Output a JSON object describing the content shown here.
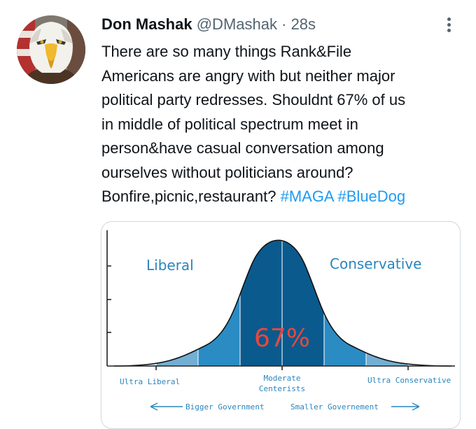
{
  "tweet": {
    "author_name": "Don Mashak",
    "author_handle": "@DMashak",
    "separator": "·",
    "timestamp": "28s",
    "text_lines": [
      "There are so many things Rank&File",
      "Americans are angry with but neither major",
      "political party redresses. Shouldnt 67% of us",
      "in middle of political spectrum meet in",
      "person&have casual conversation among",
      "ourselves without politicians around?"
    ],
    "last_line_text": "Bonfire,picnic,restaurant? ",
    "hashtags": [
      "#MAGA",
      "#BlueDog"
    ]
  },
  "icons": {
    "avatar": "bald-eagle-avatar",
    "more": "more-options-icon"
  },
  "colors": {
    "link": "#1d9bf0",
    "text": "#0f1419",
    "muted": "#536471",
    "curve_center": "#0a5a8e",
    "curve_mid": "#2a8cc3",
    "curve_outer": "#73aed3",
    "label_blue": "#2a85bd",
    "percent_red": "#e8483c"
  },
  "chart": {
    "left_label": "Liberal",
    "right_label": "Conservative",
    "center_value": "67%",
    "x_labels": {
      "left": "Ultra Liberal",
      "center_line1": "Moderate",
      "center_line2": "Centerists",
      "right": "Ultra Conservative"
    },
    "arrow_left_label": "Bigger Government",
    "arrow_right_label": "Smaller Governement"
  }
}
